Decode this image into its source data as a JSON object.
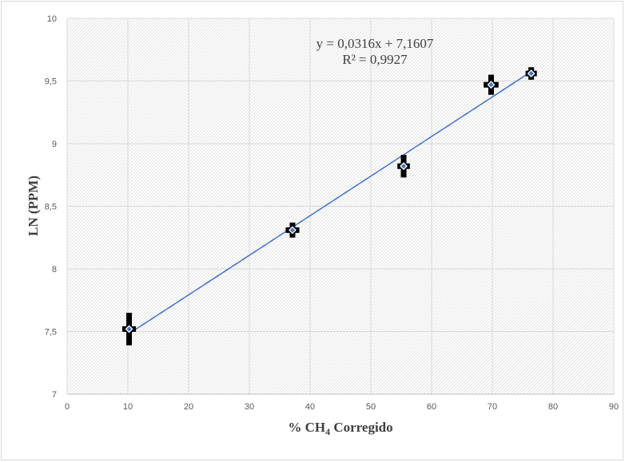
{
  "chart_data": {
    "type": "scatter",
    "title": "",
    "xlabel": {
      "prefix": "% CH",
      "sub": "4",
      "suffix": " Corregido"
    },
    "ylabel": "LN (PPM)",
    "xlim": [
      0,
      90
    ],
    "ylim": [
      7,
      10
    ],
    "x_ticks": [
      {
        "value": 0,
        "label": "0"
      },
      {
        "value": 10,
        "label": "10"
      },
      {
        "value": 20,
        "label": "20"
      },
      {
        "value": 30,
        "label": "30"
      },
      {
        "value": 40,
        "label": "40"
      },
      {
        "value": 50,
        "label": "50"
      },
      {
        "value": 60,
        "label": "60"
      },
      {
        "value": 70,
        "label": "70"
      },
      {
        "value": 80,
        "label": "80"
      },
      {
        "value": 90,
        "label": "90"
      }
    ],
    "y_ticks": [
      {
        "value": 7,
        "label": "7"
      },
      {
        "value": 7.5,
        "label": "7,5"
      },
      {
        "value": 8,
        "label": "8"
      },
      {
        "value": 8.5,
        "label": "8,5"
      },
      {
        "value": 9,
        "label": "9"
      },
      {
        "value": 9.5,
        "label": "9,5"
      },
      {
        "value": 10,
        "label": "10"
      }
    ],
    "grid": true,
    "points": [
      {
        "x": 10.2,
        "y": 7.52,
        "err_y": 0.13,
        "err_x": 0.6
      },
      {
        "x": 37.1,
        "y": 8.31,
        "err_y": 0.06,
        "err_x": 0.6
      },
      {
        "x": 55.4,
        "y": 8.82,
        "err_y": 0.09,
        "err_x": 0.5
      },
      {
        "x": 69.8,
        "y": 9.47,
        "err_y": 0.08,
        "err_x": 0.7
      },
      {
        "x": 76.4,
        "y": 9.56,
        "err_y": 0.05,
        "err_x": 0.4
      }
    ],
    "trendline": {
      "slope": 0.0316,
      "intercept": 7.1607,
      "x_range": [
        10.2,
        76.4
      ],
      "equation": "y = 0,0316x + 7,1607",
      "r_squared": "R² = 0,9927"
    },
    "colors": {
      "marker_fill": "#4472c4",
      "error_bar": "#000000",
      "trendline": "#4472c4",
      "grid": "#d9d9d9"
    }
  }
}
